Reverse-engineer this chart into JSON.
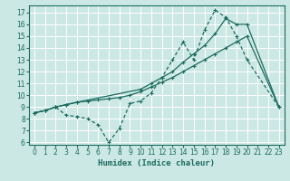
{
  "title": "",
  "xlabel": "Humidex (Indice chaleur)",
  "xlim": [
    -0.5,
    23.5
  ],
  "ylim": [
    5.8,
    17.6
  ],
  "yticks": [
    6,
    7,
    8,
    9,
    10,
    11,
    12,
    13,
    14,
    15,
    16,
    17
  ],
  "xticks": [
    0,
    1,
    2,
    3,
    4,
    5,
    6,
    7,
    8,
    9,
    10,
    11,
    12,
    13,
    14,
    15,
    16,
    17,
    18,
    19,
    20,
    21,
    22,
    23
  ],
  "bg_color": "#cce8e4",
  "line_color": "#1a6b5e",
  "grid_color": "#ffffff",
  "line1_x": [
    0,
    1,
    2,
    3,
    4,
    5,
    6,
    7,
    8,
    9,
    10,
    11,
    12,
    13,
    14,
    15,
    16,
    17,
    18,
    19,
    20,
    23
  ],
  "line1_y": [
    8.5,
    8.7,
    9.0,
    9.2,
    9.4,
    9.5,
    9.6,
    9.7,
    9.8,
    10.0,
    10.3,
    10.7,
    11.1,
    11.5,
    12.0,
    12.5,
    13.0,
    13.5,
    14.0,
    14.5,
    15.0,
    9.0
  ],
  "line2_x": [
    0,
    1,
    2,
    3,
    4,
    5,
    6,
    7,
    8,
    9,
    10,
    11,
    12,
    13,
    14,
    15,
    16,
    17,
    18,
    19,
    20,
    23
  ],
  "line2_y": [
    8.5,
    8.7,
    9.0,
    8.3,
    8.2,
    8.0,
    7.5,
    6.0,
    7.2,
    9.3,
    9.5,
    10.2,
    11.5,
    13.0,
    14.5,
    13.0,
    15.5,
    17.2,
    16.6,
    15.0,
    13.0,
    9.0
  ],
  "line3_x": [
    0,
    1,
    2,
    3,
    4,
    10,
    11,
    12,
    13,
    14,
    15,
    16,
    17,
    18,
    19,
    20,
    23
  ],
  "line3_y": [
    8.5,
    8.7,
    9.0,
    9.2,
    9.4,
    10.5,
    11.0,
    11.5,
    12.0,
    12.8,
    13.5,
    14.2,
    15.2,
    16.5,
    16.0,
    16.0,
    9.0
  ]
}
